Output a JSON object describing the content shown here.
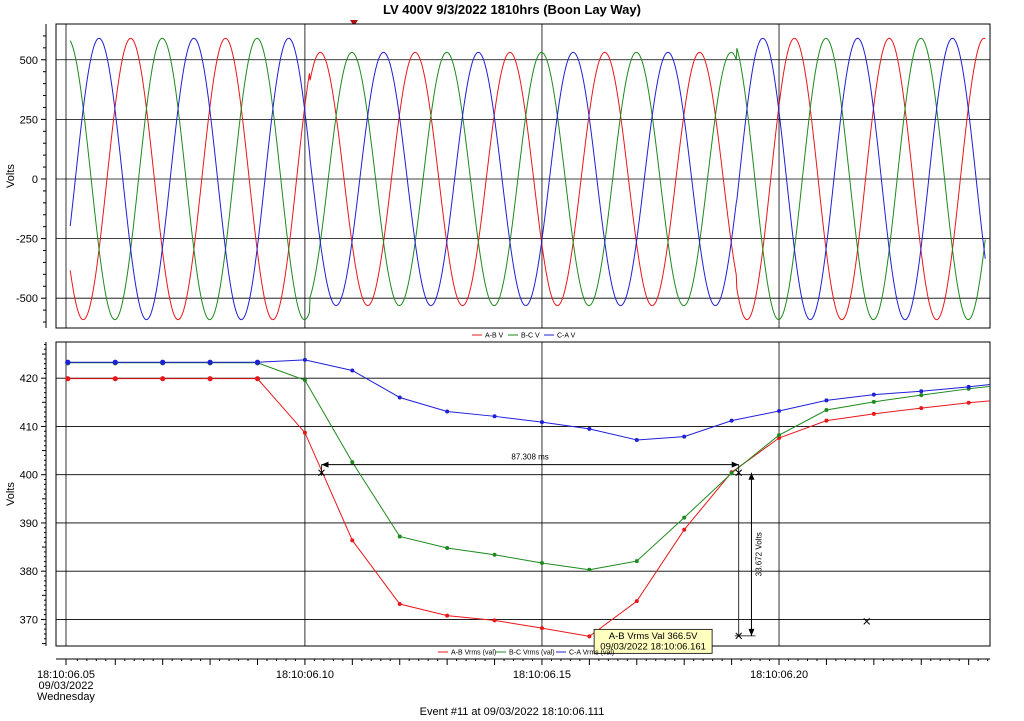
{
  "title": "LV 400V 9/3/2022 1810hrs (Boon Lay Way)",
  "footer": "Event #11 at 09/03/2022 18:10:06.111",
  "x_axis": {
    "ticks": [
      {
        "t": 0.05,
        "lines": [
          "18:10:06.05",
          "09/03/2022",
          "Wednesday"
        ]
      },
      {
        "t": 0.1,
        "lines": [
          "18:10:06.10"
        ]
      },
      {
        "t": 0.15,
        "lines": [
          "18:10:06.15"
        ]
      },
      {
        "t": 0.2,
        "lines": [
          "18:10:06.20"
        ]
      }
    ]
  },
  "colors": {
    "ab": "#e8171a",
    "bc": "#1c8a1c",
    "ca": "#1f1fd6",
    "grid": "#000000",
    "tooltip_bg": "#ffffc0"
  },
  "chart_data": [
    {
      "type": "line",
      "name": "waveform",
      "ylabel": "Volts",
      "xlim": [
        0.0475,
        0.2445
      ],
      "ylim": [
        -625,
        650
      ],
      "yticks": [
        -500,
        -250,
        0,
        250,
        500
      ],
      "amplitude": 590,
      "frequency_hz": 50,
      "series": [
        {
          "name": "A-B V",
          "color": "#e8171a",
          "phase_deg": 0
        },
        {
          "name": "B-C V",
          "color": "#1c8a1c",
          "phase_deg": -120
        },
        {
          "name": "C-A V",
          "color": "#1f1fd6",
          "phase_deg": 120
        }
      ],
      "dip": {
        "start": 0.101,
        "end": 0.191,
        "factor": 0.9
      }
    },
    {
      "type": "line",
      "name": "rms",
      "ylabel": "Volts",
      "xlim": [
        0.0475,
        0.2445
      ],
      "ylim": [
        364.5,
        427.5
      ],
      "yticks": [
        370,
        380,
        390,
        400,
        410,
        420
      ],
      "series": [
        {
          "name": "A-B Vrms (val)",
          "color": "#e8171a",
          "x": [
            0.05,
            0.06,
            0.07,
            0.08,
            0.09,
            0.1,
            0.11,
            0.12,
            0.13,
            0.14,
            0.15,
            0.16,
            0.17,
            0.18,
            0.19,
            0.2,
            0.21,
            0.22,
            0.23,
            0.24,
            0.2445
          ],
          "y": [
            419.9,
            419.9,
            419.9,
            419.9,
            419.9,
            408.7,
            386.4,
            373.2,
            370.8,
            369.8,
            368.2,
            366.5,
            373.8,
            388.6,
            400.5,
            407.6,
            411.2,
            412.6,
            413.8,
            414.9,
            415.3
          ]
        },
        {
          "name": "B-C Vrms (val)",
          "color": "#1c8a1c",
          "x": [
            0.05,
            0.06,
            0.07,
            0.08,
            0.09,
            0.1,
            0.11,
            0.12,
            0.13,
            0.14,
            0.15,
            0.16,
            0.17,
            0.18,
            0.19,
            0.2,
            0.21,
            0.22,
            0.23,
            0.24,
            0.2445
          ],
          "y": [
            423.2,
            423.2,
            423.2,
            423.2,
            423.2,
            419.6,
            402.6,
            387.2,
            384.8,
            383.4,
            381.7,
            380.3,
            382.1,
            391.1,
            400.3,
            408.2,
            413.4,
            415.1,
            416.5,
            417.8,
            418.3
          ]
        },
        {
          "name": "C-A Vrms (val)",
          "color": "#1f1fd6",
          "x": [
            0.05,
            0.06,
            0.07,
            0.08,
            0.09,
            0.1,
            0.11,
            0.12,
            0.13,
            0.14,
            0.15,
            0.16,
            0.17,
            0.18,
            0.19,
            0.2,
            0.21,
            0.22,
            0.23,
            0.24,
            0.2445
          ],
          "y": [
            423.3,
            423.3,
            423.3,
            423.3,
            423.3,
            423.8,
            421.6,
            416.0,
            413.1,
            412.1,
            410.9,
            409.5,
            407.2,
            407.9,
            411.2,
            413.2,
            415.4,
            416.6,
            417.3,
            418.2,
            418.7
          ]
        }
      ],
      "annotations": {
        "duration": {
          "label": "87.308 ms",
          "x1": 0.1035,
          "x2": 0.1915,
          "y": 402.1
        },
        "drop": {
          "label": "33.672 Volts",
          "x": 0.1925,
          "y1": 400.4,
          "y2": 366.6
        },
        "markers": [
          [
            0.1035,
            400.4
          ],
          [
            0.1915,
            400.4
          ],
          [
            0.1915,
            366.6
          ],
          [
            0.2185,
            369.6
          ]
        ],
        "tooltip": {
          "lines": [
            "A-B Vrms Val 366.5V",
            "09/03/2022 18:10:06.161"
          ],
          "x": 0.161,
          "y": 366.5
        }
      }
    }
  ]
}
